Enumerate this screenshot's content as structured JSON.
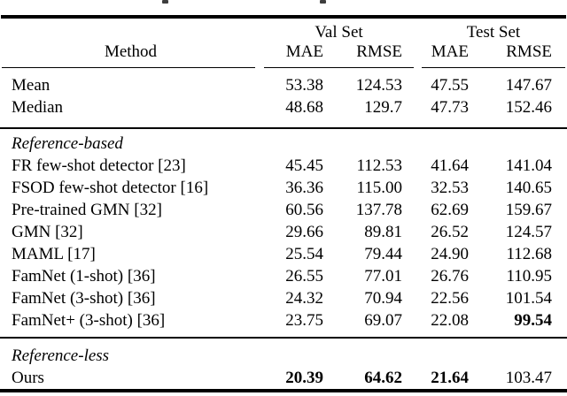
{
  "table": {
    "group_headers": {
      "val": "Val Set",
      "test": "Test Set"
    },
    "col_headers": {
      "method": "Method",
      "val_mae": "MAE",
      "val_rmse": "RMSE",
      "test_mae": "MAE",
      "test_rmse": "RMSE"
    },
    "rows": [
      {
        "method": "Mean",
        "val_mae": "53.38",
        "val_rmse": "124.53",
        "test_mae": "47.55",
        "test_rmse": "147.67"
      },
      {
        "method": "Median",
        "val_mae": "48.68",
        "val_rmse": "129.7",
        "test_mae": "47.73",
        "test_rmse": "152.46"
      },
      {
        "section": "Reference-based"
      },
      {
        "method": "FR few-shot detector [23]",
        "val_mae": "45.45",
        "val_rmse": "112.53",
        "test_mae": "41.64",
        "test_rmse": "141.04"
      },
      {
        "method": "FSOD few-shot detector [16]",
        "val_mae": "36.36",
        "val_rmse": "115.00",
        "test_mae": "32.53",
        "test_rmse": "140.65"
      },
      {
        "method": "Pre-trained GMN [32]",
        "val_mae": "60.56",
        "val_rmse": "137.78",
        "test_mae": "62.69",
        "test_rmse": "159.67"
      },
      {
        "method": "GMN [32]",
        "val_mae": "29.66",
        "val_rmse": "89.81",
        "test_mae": "26.52",
        "test_rmse": "124.57"
      },
      {
        "method": "MAML [17]",
        "val_mae": "25.54",
        "val_rmse": "79.44",
        "test_mae": "24.90",
        "test_rmse": "112.68"
      },
      {
        "method": "FamNet (1-shot) [36]",
        "val_mae": "26.55",
        "val_rmse": "77.01",
        "test_mae": "26.76",
        "test_rmse": "110.95"
      },
      {
        "method": "FamNet (3-shot) [36]",
        "val_mae": "24.32",
        "val_rmse": "70.94",
        "test_mae": "22.56",
        "test_rmse": "101.54"
      },
      {
        "method": "FamNet+ (3-shot) [36]",
        "val_mae": "23.75",
        "val_rmse": "69.07",
        "test_mae": "22.08",
        "test_rmse": "99.54"
      },
      {
        "section": "Reference-less"
      },
      {
        "method": "Ours",
        "val_mae": "20.39",
        "val_rmse": "64.62",
        "test_mae": "21.64",
        "test_rmse": "103.47"
      }
    ],
    "colors": {
      "text": "#000000",
      "rule": "#000000",
      "background": "#ffffff"
    }
  }
}
